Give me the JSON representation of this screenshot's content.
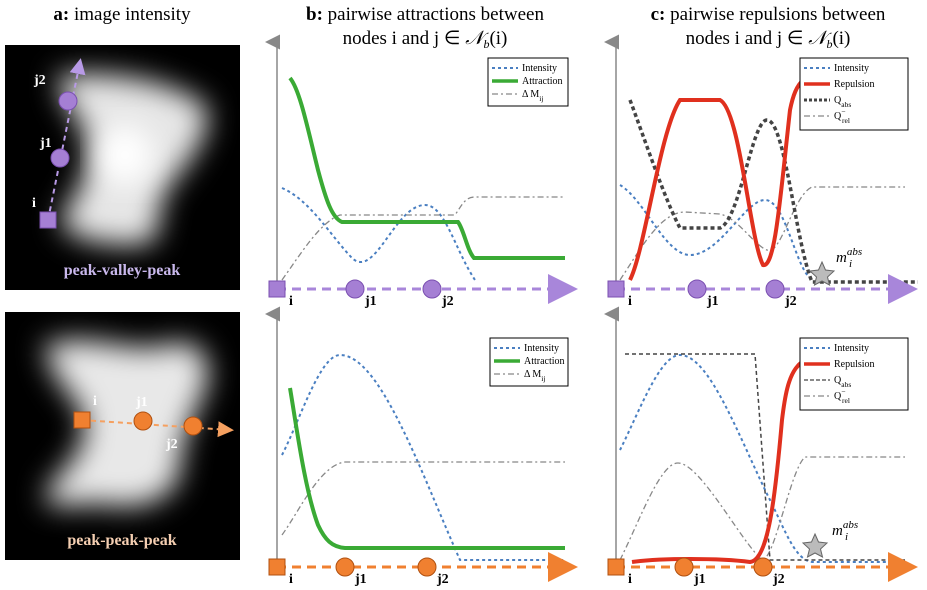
{
  "panel_a": {
    "label": "a:",
    "title": "image intensity",
    "top": {
      "caption": "peak-valley-peak",
      "nodes": [
        "i",
        "j1",
        "j2"
      ]
    },
    "bottom": {
      "caption": "peak-peak-peak",
      "nodes": [
        "i",
        "j1",
        "j2"
      ]
    }
  },
  "panel_b": {
    "label": "b:",
    "title_line1": "pairwise attractions between",
    "title_line2": "nodes i and j ∈ ",
    "title_math": "𝒩",
    "title_math_sub": "b",
    "title_math_tail": "(i)",
    "top": {
      "legend": [
        {
          "text": "Intensity"
        },
        {
          "text": "Attraction"
        },
        {
          "text": "Δ M",
          "sub": "ij"
        }
      ],
      "nodes": [
        "i",
        "j1",
        "j2"
      ]
    },
    "bottom": {
      "legend": [
        {
          "text": "Intensity"
        },
        {
          "text": "Attraction"
        },
        {
          "text": "Δ M",
          "sub": "ij"
        }
      ],
      "nodes": [
        "i",
        "j1",
        "j2"
      ]
    }
  },
  "panel_c": {
    "label": "c:",
    "title_line1": "pairwise repulsions between",
    "title_line2": "nodes i and j ∈ ",
    "title_math": "𝒩",
    "title_math_sub": "b",
    "title_math_tail": "(i)",
    "top": {
      "legend": [
        {
          "text": "Intensity"
        },
        {
          "text": "Repulsion"
        },
        {
          "text": "Q",
          "sub": "abs"
        },
        {
          "text": "Q",
          "sup": "−",
          "sub": "rel"
        }
      ],
      "nodes": [
        "i",
        "j1",
        "j2"
      ],
      "marker": {
        "text": "m",
        "sub": "i",
        "sup": "abs"
      }
    },
    "bottom": {
      "legend": [
        {
          "text": "Intensity"
        },
        {
          "text": "Repulsion"
        },
        {
          "text": "Q",
          "sub": "abs"
        },
        {
          "text": "Q",
          "sup": "−",
          "sub": "rel"
        }
      ],
      "nodes": [
        "i",
        "j1",
        "j2"
      ],
      "marker": {
        "text": "m",
        "sub": "i",
        "sup": "abs"
      }
    }
  }
}
